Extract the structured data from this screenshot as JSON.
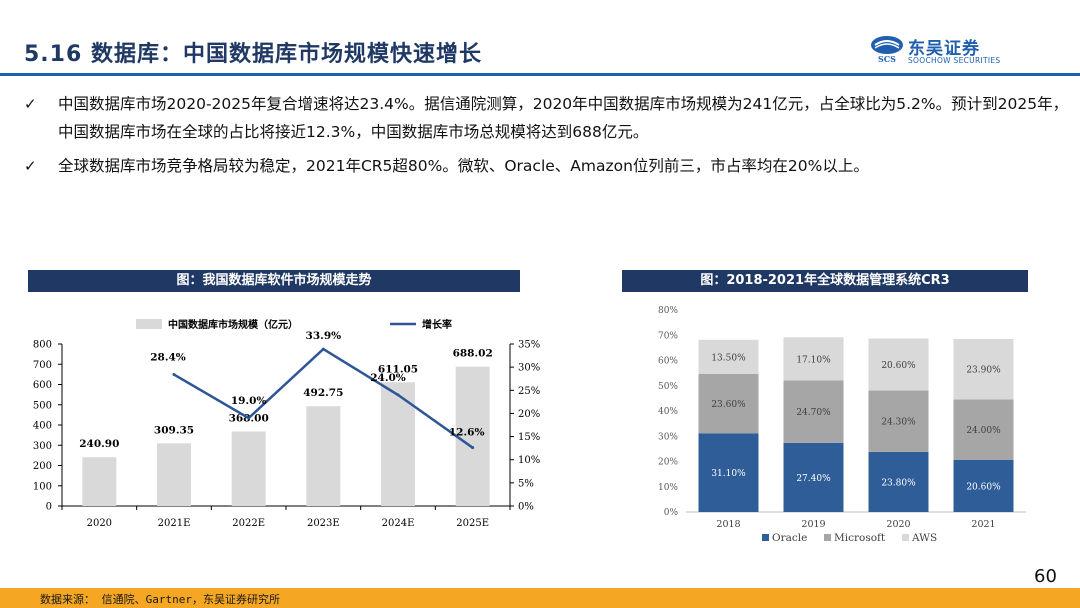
{
  "header": {
    "title": "5.16 数据库：中国数据库市场规模快速增长",
    "logo_cn": "东吴证券",
    "logo_en": "SOOCHOW SECURITIES",
    "logo_mark": "SCS"
  },
  "bullets": [
    {
      "tick": "✓",
      "text": "中国数据库市场2020-2025年复合增速将达23.4%。据信通院测算，2020年中国数据库市场规模为241亿元，占全球比为5.2%。预计到2025年，中国数据库市场在全球的占比将接近12.3%，中国数据库市场总规模将达到688亿元。"
    },
    {
      "tick": "✓",
      "text": "全球数据库市场竞争格局较为稳定，2021年CR5超80%。微软、Oracle、Amazon位列前三，市占率均在20%以上。"
    }
  ],
  "chart_data": [
    {
      "type": "bar+line",
      "title": "图：我国数据库软件市场规模走势",
      "categories": [
        "2020",
        "2021E",
        "2022E",
        "2023E",
        "2024E",
        "2025E"
      ],
      "series": [
        {
          "name": "中国数据库市场规模（亿元）",
          "type": "bar",
          "axis": "left",
          "values": [
            240.9,
            309.35,
            368.0,
            492.75,
            611.05,
            688.02
          ],
          "labels": [
            "240.90",
            "309.35",
            "368.00",
            "492.75",
            "611.05",
            "688.02"
          ]
        },
        {
          "name": "增长率",
          "type": "line",
          "axis": "right",
          "x": [
            "2021E",
            "2022E",
            "2023E",
            "2024E",
            "2025E"
          ],
          "values": [
            28.4,
            19.0,
            33.9,
            24.0,
            12.6
          ],
          "labels": [
            "28.4%",
            "19.0%",
            "33.9%",
            "24.0%",
            "12.6%"
          ]
        }
      ],
      "y_left": {
        "range": [
          0,
          800
        ],
        "ticks": [
          "0",
          "100",
          "200",
          "300",
          "400",
          "500",
          "600",
          "700",
          "800"
        ]
      },
      "y_right": {
        "range": [
          0,
          35
        ],
        "ticks": [
          "0%",
          "5%",
          "10%",
          "15%",
          "20%",
          "25%",
          "30%",
          "35%"
        ]
      },
      "legend": "top",
      "colors": {
        "bar": "#d9d9d9",
        "line": "#2e5597"
      }
    },
    {
      "type": "stacked-bar",
      "title": "图：2018-2021年全球数据管理系统CR3",
      "categories": [
        "2018",
        "2019",
        "2020",
        "2021"
      ],
      "series": [
        {
          "name": "Oracle",
          "values": [
            31.1,
            27.4,
            23.8,
            20.6
          ],
          "labels": [
            "31.10%",
            "27.40%",
            "23.80%",
            "20.60%"
          ],
          "color": "#2f5d98"
        },
        {
          "name": "Microsoft",
          "values": [
            23.6,
            24.7,
            24.3,
            24.0
          ],
          "labels": [
            "23.60%",
            "24.70%",
            "24.30%",
            "24.00%"
          ],
          "color": "#a6a6a6"
        },
        {
          "name": "AWS",
          "values": [
            13.5,
            17.1,
            20.6,
            23.9
          ],
          "labels": [
            "13.50%",
            "17.10%",
            "20.60%",
            "23.90%"
          ],
          "color": "#d9d9d9"
        }
      ],
      "y": {
        "range": [
          0,
          80
        ],
        "ticks": [
          "0%",
          "10%",
          "20%",
          "30%",
          "40%",
          "50%",
          "60%",
          "70%",
          "80%"
        ]
      },
      "legend": "bottom"
    }
  ],
  "footer": {
    "source": "数据来源： 信通院、Gartner，东吴证券研究所",
    "page": "60"
  }
}
